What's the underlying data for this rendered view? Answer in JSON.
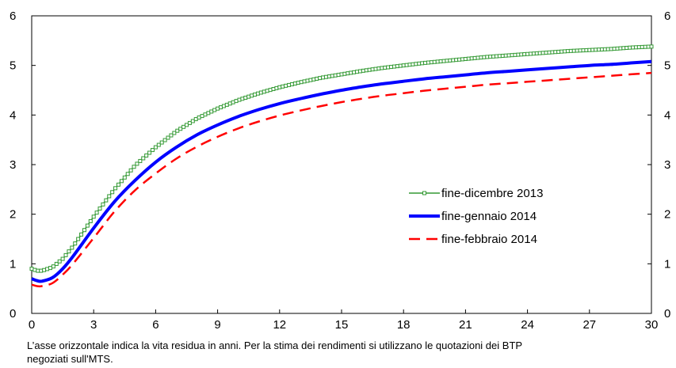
{
  "chart_data": {
    "type": "line",
    "xlim": [
      0,
      30
    ],
    "ylim": [
      0,
      6
    ],
    "x_ticks": [
      "0",
      "3",
      "6",
      "9",
      "12",
      "15",
      "18",
      "21",
      "24",
      "27",
      "30"
    ],
    "y_ticks": [
      "0",
      "1",
      "2",
      "3",
      "4",
      "5",
      "6"
    ],
    "y_ticks_right": [
      "0",
      "1",
      "2",
      "3",
      "4",
      "5",
      "6"
    ],
    "grid": false,
    "legend_position": "center-right",
    "x": [
      0,
      0.25,
      0.5,
      1,
      1.5,
      2,
      3,
      4,
      5,
      6,
      7,
      8,
      9,
      10,
      11,
      12,
      13,
      14,
      15,
      16,
      17,
      18,
      19,
      20,
      21,
      22,
      23,
      24,
      25,
      26,
      27,
      28,
      29,
      30
    ],
    "series": [
      {
        "name": "fine-dicembre 2013",
        "color": "#339933",
        "style": "line-square-markers",
        "values": [
          0.9,
          0.86,
          0.86,
          0.93,
          1.1,
          1.35,
          1.95,
          2.5,
          2.98,
          3.35,
          3.67,
          3.93,
          4.13,
          4.3,
          4.44,
          4.56,
          4.66,
          4.75,
          4.82,
          4.89,
          4.95,
          5.0,
          5.05,
          5.09,
          5.13,
          5.17,
          5.2,
          5.23,
          5.26,
          5.29,
          5.31,
          5.33,
          5.36,
          5.38
        ]
      },
      {
        "name": "fine-gennaio 2014",
        "color": "#0000ff",
        "style": "solid-thick",
        "values": [
          0.7,
          0.66,
          0.65,
          0.72,
          0.9,
          1.15,
          1.72,
          2.25,
          2.68,
          3.05,
          3.35,
          3.6,
          3.8,
          3.97,
          4.11,
          4.23,
          4.33,
          4.42,
          4.5,
          4.57,
          4.63,
          4.68,
          4.73,
          4.77,
          4.81,
          4.85,
          4.88,
          4.91,
          4.94,
          4.97,
          5.0,
          5.02,
          5.05,
          5.08
        ]
      },
      {
        "name": "fine-febbraio 2014",
        "color": "#ff0000",
        "style": "dashed",
        "values": [
          0.58,
          0.55,
          0.55,
          0.61,
          0.78,
          1.0,
          1.52,
          2.05,
          2.48,
          2.82,
          3.12,
          3.36,
          3.56,
          3.73,
          3.87,
          3.99,
          4.09,
          4.18,
          4.26,
          4.33,
          4.39,
          4.44,
          4.49,
          4.53,
          4.57,
          4.61,
          4.64,
          4.67,
          4.7,
          4.73,
          4.76,
          4.79,
          4.82,
          4.85
        ]
      }
    ]
  },
  "note": {
    "line1": "L’asse orizzontale indica la vita residua in anni. Per la stima dei rendimenti si utilizzano le quotazioni dei BTP",
    "line2": "negoziati sull'MTS."
  }
}
